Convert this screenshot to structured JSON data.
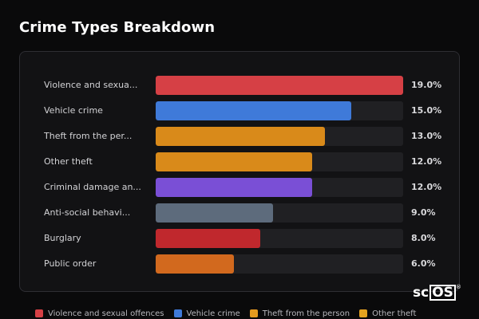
{
  "title": "Crime Types Breakdown",
  "chart_data": {
    "type": "bar",
    "orientation": "horizontal",
    "title": "Crime Types Breakdown",
    "categories": [
      "Violence and sexua...",
      "Vehicle crime",
      "Theft from the per...",
      "Other theft",
      "Criminal damage an...",
      "Anti-social behavi...",
      "Burglary",
      "Public order"
    ],
    "values": [
      19.0,
      15.0,
      13.0,
      12.0,
      12.0,
      9.0,
      8.0,
      6.0
    ],
    "value_labels": [
      "19.0%",
      "15.0%",
      "13.0%",
      "12.0%",
      "12.0%",
      "9.0%",
      "8.0%",
      "6.0%"
    ],
    "colors": [
      "#d64045",
      "#3f7ad9",
      "#d98a1a",
      "#d98a1a",
      "#7a4fd6",
      "#5d6b7c",
      "#c0282d",
      "#d2691e"
    ],
    "xlim": [
      0,
      19.0
    ],
    "grid": false,
    "legend_position": "bottom"
  },
  "legend": [
    {
      "label": "Violence and sexual offences",
      "color": "#d64045"
    },
    {
      "label": "Vehicle crime",
      "color": "#3f7ad9"
    },
    {
      "label": "Theft from the person",
      "color": "#e59a1f"
    },
    {
      "label": "Other theft",
      "color": "#e5a21f"
    }
  ],
  "logo": {
    "prefix": "sc",
    "boxed": "OS",
    "mark": "®"
  }
}
